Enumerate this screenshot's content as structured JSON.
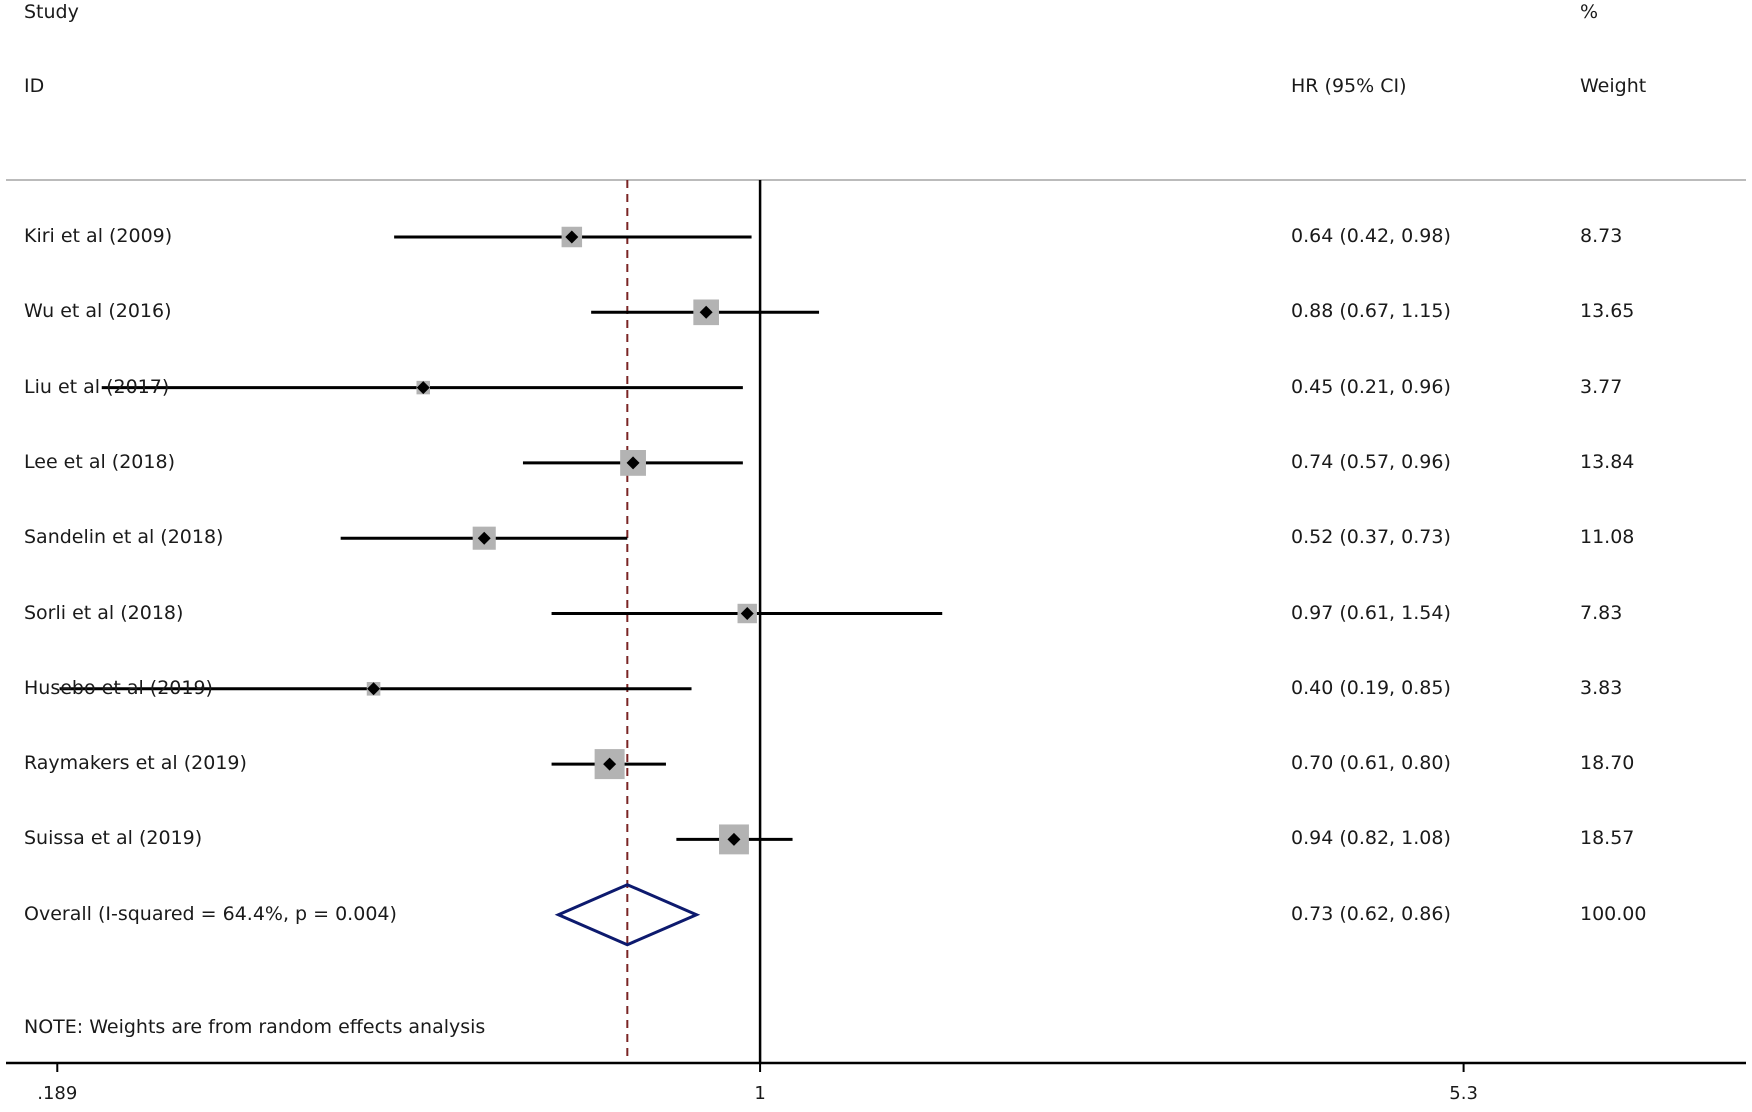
{
  "header": {
    "study_label": "Study",
    "id_label": "ID",
    "hr_label": "HR (95% CI)",
    "pct_label": "%",
    "weight_label": "Weight"
  },
  "note": "NOTE: Weights are from random effects analysis",
  "colors": {
    "ci_line": "#000000",
    "weight_box": "#b3b3b3",
    "diamond": "#0d1a6e",
    "overall_ref_line": "#7a2424",
    "header_rule": "#bbbbbb"
  },
  "chart_data": {
    "type": "forest",
    "x_scale": "log",
    "xlim": [
      0.165,
      10.5
    ],
    "null_value": 1,
    "x_ticks": [
      0.189,
      1,
      5.3
    ],
    "x_tick_labels": [
      ".189",
      "1",
      "5.3"
    ],
    "rows": [
      {
        "study": "Kiri et al (2009)",
        "hr": 0.64,
        "lo": 0.42,
        "hi": 0.98,
        "hr_text": "0.64 (0.42, 0.98)",
        "weight": 8.73,
        "weight_text": "8.73"
      },
      {
        "study": "Wu et al (2016)",
        "hr": 0.88,
        "lo": 0.67,
        "hi": 1.15,
        "hr_text": "0.88 (0.67, 1.15)",
        "weight": 13.65,
        "weight_text": "13.65"
      },
      {
        "study": "Liu et al (2017)",
        "hr": 0.45,
        "lo": 0.21,
        "hi": 0.96,
        "hr_text": "0.45 (0.21, 0.96)",
        "weight": 3.77,
        "weight_text": "3.77"
      },
      {
        "study": "Lee et al (2018)",
        "hr": 0.74,
        "lo": 0.57,
        "hi": 0.96,
        "hr_text": "0.74 (0.57, 0.96)",
        "weight": 13.84,
        "weight_text": "13.84"
      },
      {
        "study": "Sandelin et al (2018)",
        "hr": 0.52,
        "lo": 0.37,
        "hi": 0.73,
        "hr_text": "0.52 (0.37, 0.73)",
        "weight": 11.08,
        "weight_text": "11.08"
      },
      {
        "study": "Sorli et al (2018)",
        "hr": 0.97,
        "lo": 0.61,
        "hi": 1.54,
        "hr_text": "0.97 (0.61, 1.54)",
        "weight": 7.83,
        "weight_text": "7.83"
      },
      {
        "study": "Husebo et al (2019)",
        "hr": 0.4,
        "lo": 0.19,
        "hi": 0.85,
        "hr_text": "0.40 (0.19, 0.85)",
        "weight": 3.83,
        "weight_text": "3.83"
      },
      {
        "study": "Raymakers et al (2019)",
        "hr": 0.7,
        "lo": 0.61,
        "hi": 0.8,
        "hr_text": "0.70 (0.61, 0.80)",
        "weight": 18.7,
        "weight_text": "18.70"
      },
      {
        "study": "Suissa et al (2019)",
        "hr": 0.94,
        "lo": 0.82,
        "hi": 1.08,
        "hr_text": "0.94 (0.82, 1.08)",
        "weight": 18.57,
        "weight_text": "18.57"
      }
    ],
    "overall": {
      "label": "Overall  (I-squared = 64.4%, p = 0.004)",
      "hr": 0.73,
      "lo": 0.62,
      "hi": 0.86,
      "hr_text": "0.73 (0.62, 0.86)",
      "weight": 100.0,
      "weight_text": "100.00"
    }
  }
}
